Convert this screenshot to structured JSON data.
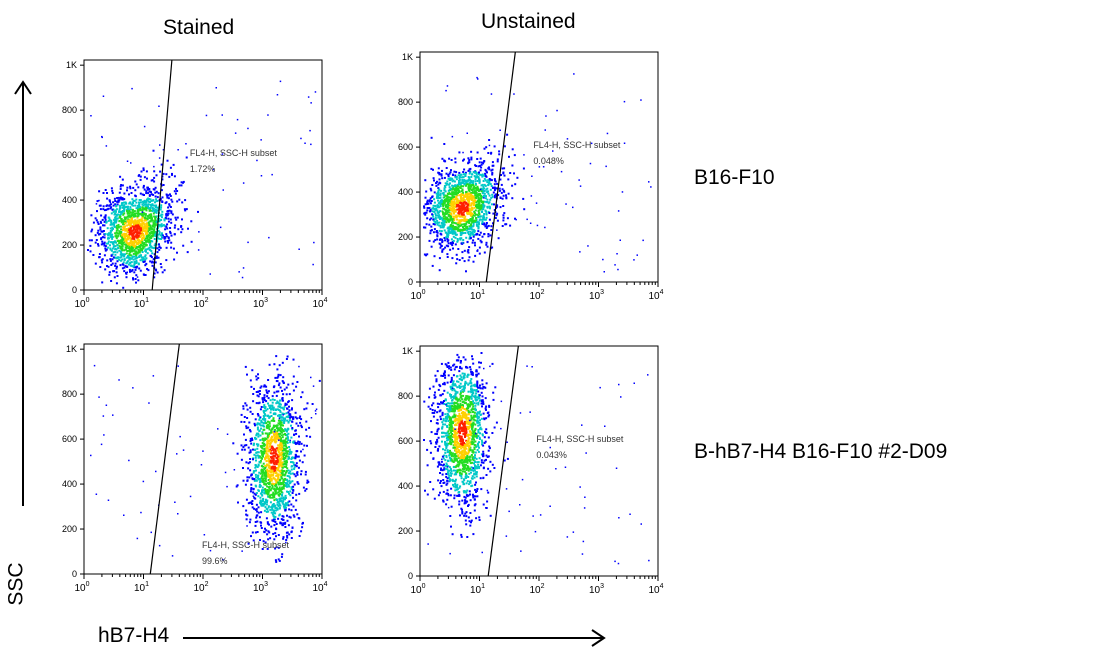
{
  "column_titles": [
    "Stained",
    "Unstained"
  ],
  "row_labels": [
    "B16-F10",
    "B-hB7-H4 B16-F10 #2-D09"
  ],
  "y_axis_label": "SSC",
  "x_axis_label": "hB7-H4",
  "y_ticks": [
    "0",
    "200",
    "400",
    "600",
    "800",
    "1K"
  ],
  "x_tick_exponents": [
    "0",
    "1",
    "2",
    "3",
    "4"
  ],
  "x_tick_base": "10",
  "colors": {
    "low": "#0000ff",
    "mid": "#00c8c8",
    "midhigh": "#22dd22",
    "high": "#ffd000",
    "peak": "#ff2000"
  },
  "chart_data": [
    {
      "type": "scatter",
      "plot": "density-dot-plot",
      "title": "Stained",
      "row": "B16-F10",
      "xscale": "log",
      "xlim": [
        1,
        10000
      ],
      "ylim": [
        0,
        1023
      ],
      "gate_label": "FL4-H, SSC-H subset",
      "gate_percent": "1.72%",
      "population_center": {
        "x": 7,
        "y": 260
      },
      "gate_line": {
        "x_at_y0": 14,
        "x_at_ymax": 30
      }
    },
    {
      "type": "scatter",
      "plot": "density-dot-plot",
      "title": "Unstained",
      "row": "B16-F10",
      "xscale": "log",
      "xlim": [
        1,
        10000
      ],
      "ylim": [
        0,
        1023
      ],
      "gate_label": "FL4-H, SSC-H subset",
      "gate_percent": "0.048%",
      "population_center": {
        "x": 5,
        "y": 330
      },
      "gate_line": {
        "x_at_y0": 13,
        "x_at_ymax": 40
      }
    },
    {
      "type": "scatter",
      "plot": "density-dot-plot",
      "title": "Stained",
      "row": "B-hB7-H4 B16-F10 #2-D09",
      "xscale": "log",
      "xlim": [
        1,
        10000
      ],
      "ylim": [
        0,
        1023
      ],
      "gate_label": "FL4-H, SSC-H subset",
      "gate_percent": "99.6%",
      "population_center": {
        "x": 1500,
        "y": 520
      },
      "gate_line": {
        "x_at_y0": 13,
        "x_at_ymax": 40
      }
    },
    {
      "type": "scatter",
      "plot": "density-dot-plot",
      "title": "Unstained",
      "row": "B-hB7-H4 B16-F10 #2-D09",
      "xscale": "log",
      "xlim": [
        1,
        10000
      ],
      "ylim": [
        0,
        1023
      ],
      "gate_label": "FL4-H, SSC-H subset",
      "gate_percent": "0.043%",
      "population_center": {
        "x": 5,
        "y": 640
      },
      "gate_line": {
        "x_at_y0": 14,
        "x_at_ymax": 45
      }
    }
  ]
}
